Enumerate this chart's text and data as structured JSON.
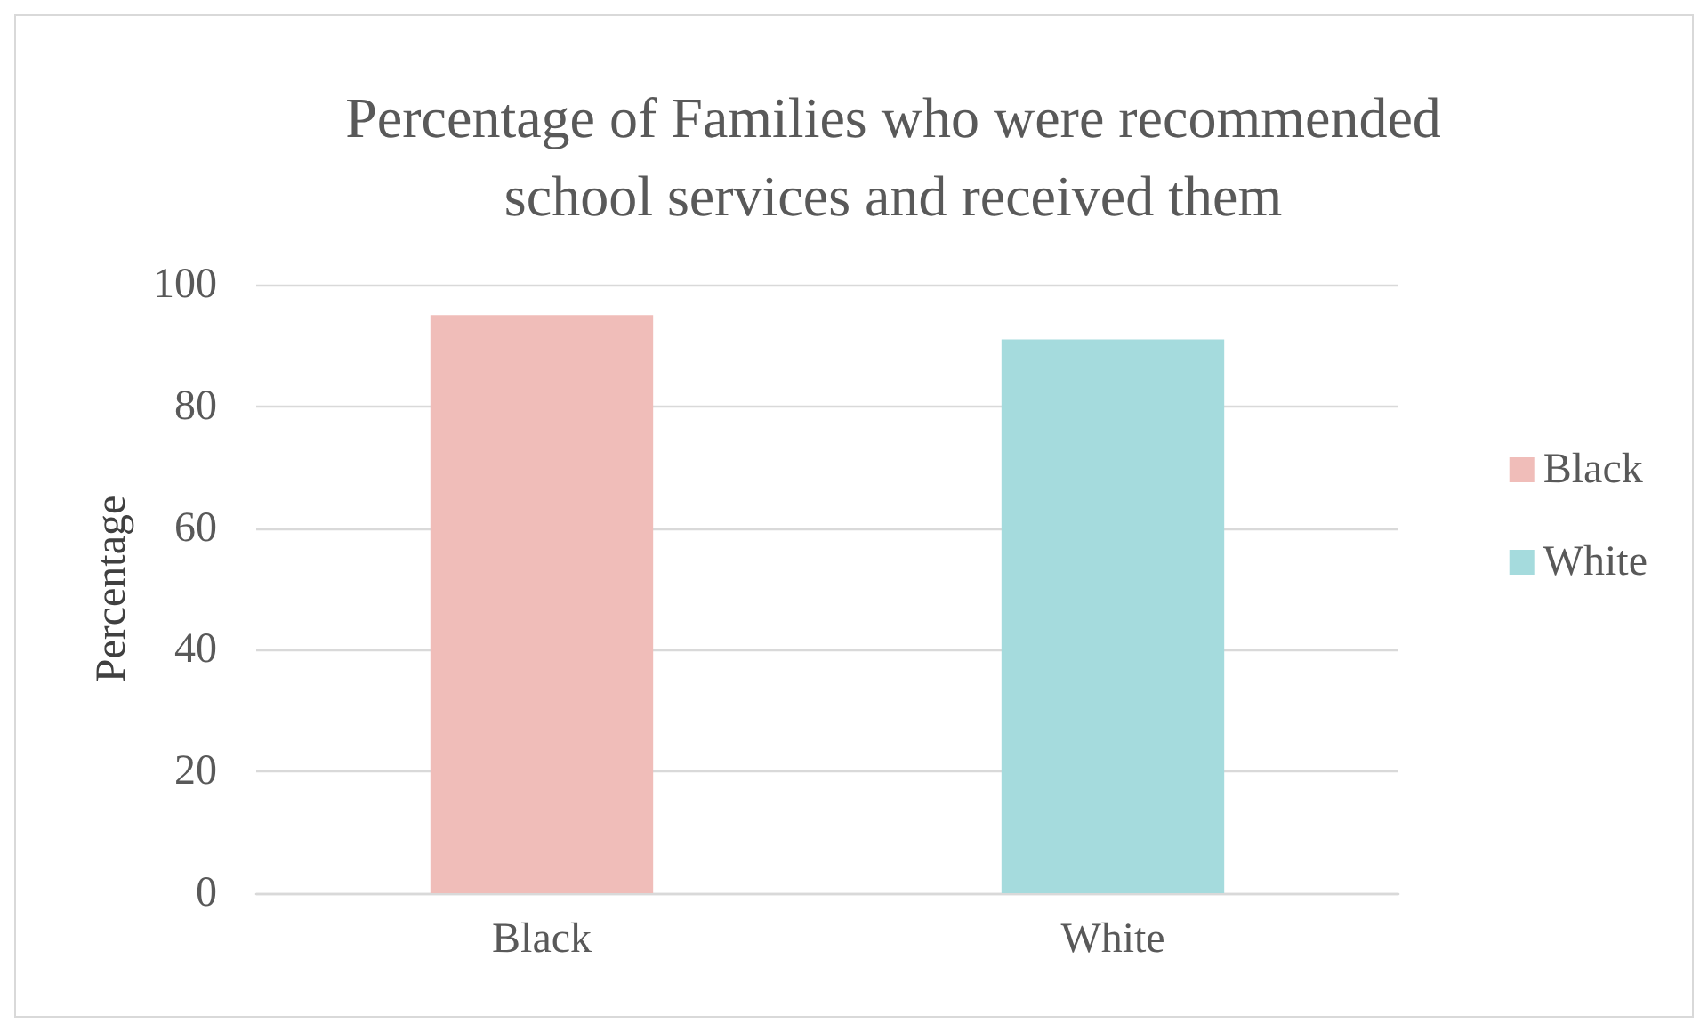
{
  "chart_data": {
    "type": "bar",
    "title": "Percentage of Families who were recommended\nschool services and received them",
    "ylabel": "Percentage",
    "categories": [
      "Black",
      "White"
    ],
    "series": [
      {
        "name": "Black",
        "color": "#f0bdb9",
        "values": [
          95,
          null
        ]
      },
      {
        "name": "White",
        "color": "#a5dbdd",
        "values": [
          null,
          91
        ]
      }
    ],
    "ylim": [
      0,
      100
    ],
    "yticks": [
      0,
      20,
      40,
      60,
      80,
      100
    ],
    "grid": "y",
    "legend": "right"
  }
}
